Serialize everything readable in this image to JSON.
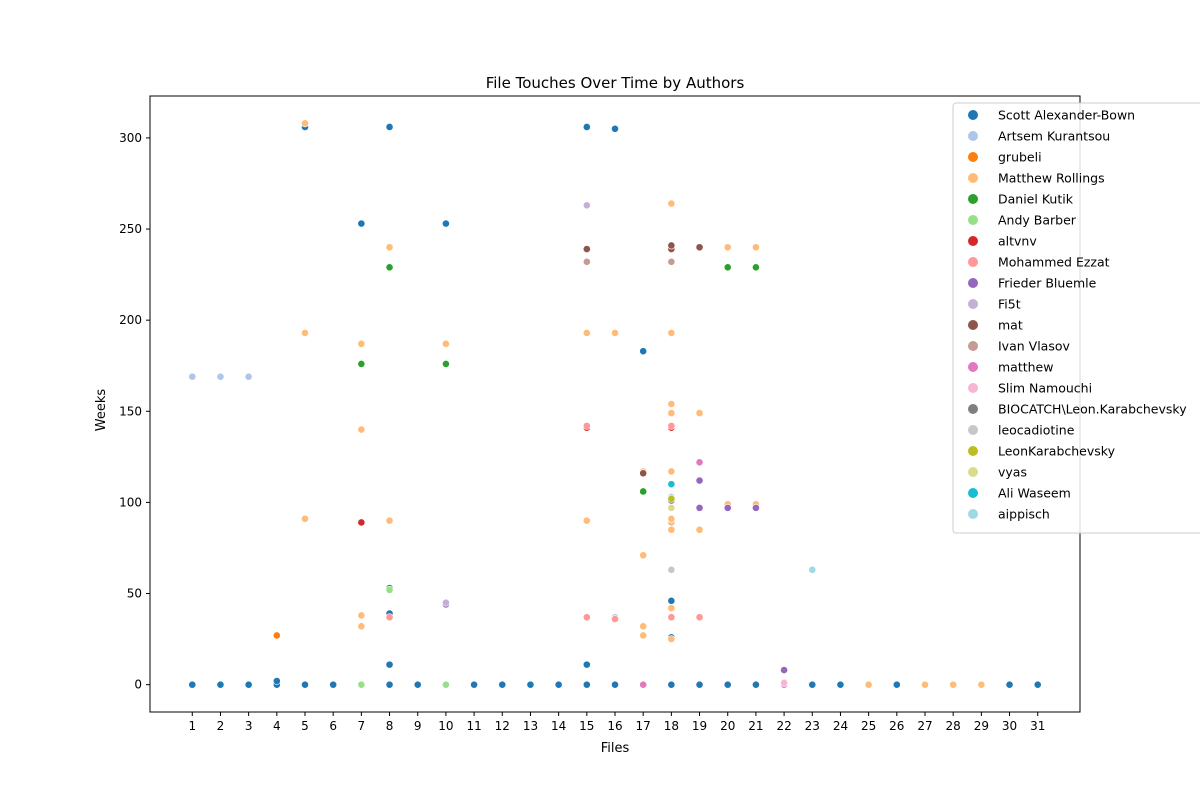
{
  "chart_data": {
    "type": "scatter",
    "title": "File Touches Over Time by Authors",
    "xlabel": "Files",
    "ylabel": "Weeks",
    "x_ticks": [
      1,
      2,
      3,
      4,
      5,
      6,
      7,
      8,
      9,
      10,
      11,
      12,
      13,
      14,
      15,
      16,
      17,
      18,
      19,
      20,
      21,
      22,
      23,
      24,
      25,
      26,
      27,
      28,
      29,
      30,
      31
    ],
    "y_ticks": [
      0,
      50,
      100,
      150,
      200,
      250,
      300
    ],
    "xlim": [
      -0.5,
      32.5
    ],
    "ylim": [
      -15,
      323
    ],
    "grid": false,
    "legend_position": "top-right",
    "series": [
      {
        "name": "Scott Alexander-Bown",
        "color": "#1f77b4",
        "points": [
          [
            1,
            0
          ],
          [
            2,
            0
          ],
          [
            3,
            0
          ],
          [
            4,
            0
          ],
          [
            4,
            2
          ],
          [
            5,
            0
          ],
          [
            5,
            306
          ],
          [
            6,
            0
          ],
          [
            7,
            253
          ],
          [
            8,
            0
          ],
          [
            8,
            11
          ],
          [
            8,
            39
          ],
          [
            8,
            306
          ],
          [
            9,
            0
          ],
          [
            10,
            253
          ],
          [
            11,
            0
          ],
          [
            12,
            0
          ],
          [
            13,
            0
          ],
          [
            14,
            0
          ],
          [
            15,
            0
          ],
          [
            15,
            11
          ],
          [
            15,
            306
          ],
          [
            16,
            0
          ],
          [
            16,
            305
          ],
          [
            17,
            183
          ],
          [
            18,
            0
          ],
          [
            18,
            26
          ],
          [
            18,
            46
          ],
          [
            19,
            0
          ],
          [
            20,
            0
          ],
          [
            21,
            0
          ],
          [
            23,
            0
          ],
          [
            24,
            0
          ],
          [
            26,
            0
          ],
          [
            30,
            0
          ],
          [
            31,
            0
          ]
        ]
      },
      {
        "name": "Artsem Kurantsou",
        "color": "#aec7e8",
        "points": [
          [
            1,
            169
          ],
          [
            2,
            169
          ],
          [
            3,
            169
          ],
          [
            16,
            37
          ]
        ]
      },
      {
        "name": "grubeli",
        "color": "#ff7f0e",
        "points": [
          [
            4,
            27
          ]
        ]
      },
      {
        "name": "Matthew Rollings",
        "color": "#ffbb78",
        "points": [
          [
            5,
            91
          ],
          [
            5,
            193
          ],
          [
            5,
            308
          ],
          [
            7,
            32
          ],
          [
            7,
            38
          ],
          [
            7,
            140
          ],
          [
            7,
            187
          ],
          [
            8,
            90
          ],
          [
            8,
            240
          ],
          [
            10,
            187
          ],
          [
            15,
            90
          ],
          [
            15,
            193
          ],
          [
            16,
            193
          ],
          [
            17,
            27
          ],
          [
            17,
            32
          ],
          [
            17,
            71
          ],
          [
            17,
            117
          ],
          [
            18,
            25
          ],
          [
            18,
            42
          ],
          [
            18,
            85
          ],
          [
            18,
            89
          ],
          [
            18,
            91
          ],
          [
            18,
            117
          ],
          [
            18,
            149
          ],
          [
            18,
            154
          ],
          [
            18,
            193
          ],
          [
            18,
            264
          ],
          [
            19,
            85
          ],
          [
            19,
            149
          ],
          [
            20,
            99
          ],
          [
            20,
            240
          ],
          [
            21,
            99
          ],
          [
            21,
            240
          ],
          [
            25,
            0
          ],
          [
            27,
            0
          ],
          [
            28,
            0
          ],
          [
            29,
            0
          ]
        ]
      },
      {
        "name": "Daniel Kutik",
        "color": "#2ca02c",
        "points": [
          [
            7,
            176
          ],
          [
            8,
            53
          ],
          [
            8,
            229
          ],
          [
            10,
            176
          ],
          [
            17,
            106
          ],
          [
            20,
            229
          ],
          [
            21,
            229
          ]
        ]
      },
      {
        "name": "Andy Barber",
        "color": "#98df8a",
        "points": [
          [
            7,
            0
          ],
          [
            8,
            52
          ],
          [
            10,
            0
          ]
        ]
      },
      {
        "name": "altvnv",
        "color": "#d62728",
        "points": [
          [
            7,
            89
          ],
          [
            15,
            141
          ],
          [
            18,
            141
          ]
        ]
      },
      {
        "name": "Mohammed Ezzat",
        "color": "#ff9896",
        "points": [
          [
            8,
            37
          ],
          [
            15,
            37
          ],
          [
            15,
            142
          ],
          [
            16,
            36
          ],
          [
            18,
            37
          ],
          [
            18,
            142
          ],
          [
            19,
            37
          ]
        ]
      },
      {
        "name": "Frieder Bluemle",
        "color": "#9467bd",
        "points": [
          [
            10,
            44
          ],
          [
            19,
            97
          ],
          [
            19,
            112
          ],
          [
            20,
            97
          ],
          [
            21,
            97
          ],
          [
            22,
            8
          ]
        ]
      },
      {
        "name": "Fi5t",
        "color": "#c5b0d5",
        "points": [
          [
            10,
            45
          ],
          [
            15,
            263
          ]
        ]
      },
      {
        "name": "mat",
        "color": "#8c564b",
        "points": [
          [
            15,
            239
          ],
          [
            17,
            116
          ],
          [
            18,
            239
          ],
          [
            18,
            241
          ],
          [
            19,
            240
          ]
        ]
      },
      {
        "name": "Ivan Vlasov",
        "color": "#c49c94",
        "points": [
          [
            15,
            232
          ],
          [
            18,
            232
          ]
        ]
      },
      {
        "name": "matthew",
        "color": "#e377c2",
        "points": [
          [
            17,
            0
          ],
          [
            19,
            122
          ],
          [
            22,
            0
          ]
        ]
      },
      {
        "name": "Slim Namouchi",
        "color": "#f7b6d2",
        "points": [
          [
            22,
            1
          ]
        ]
      },
      {
        "name": "BIOCATCH\\Leon.Karabchevsky",
        "color": "#7f7f7f",
        "points": [
          [
            18,
            101
          ]
        ]
      },
      {
        "name": "leocadiotine",
        "color": "#c7c7c7",
        "points": [
          [
            18,
            63
          ],
          [
            18,
            103
          ]
        ]
      },
      {
        "name": "LeonKarabchevsky",
        "color": "#bcbd22",
        "points": [
          [
            18,
            102
          ]
        ]
      },
      {
        "name": "vyas",
        "color": "#dbdb8d",
        "points": [
          [
            18,
            97
          ]
        ]
      },
      {
        "name": "Ali Waseem",
        "color": "#17becf",
        "points": [
          [
            18,
            110
          ]
        ]
      },
      {
        "name": "aippisch",
        "color": "#9edae5",
        "points": [
          [
            23,
            63
          ]
        ]
      }
    ]
  }
}
